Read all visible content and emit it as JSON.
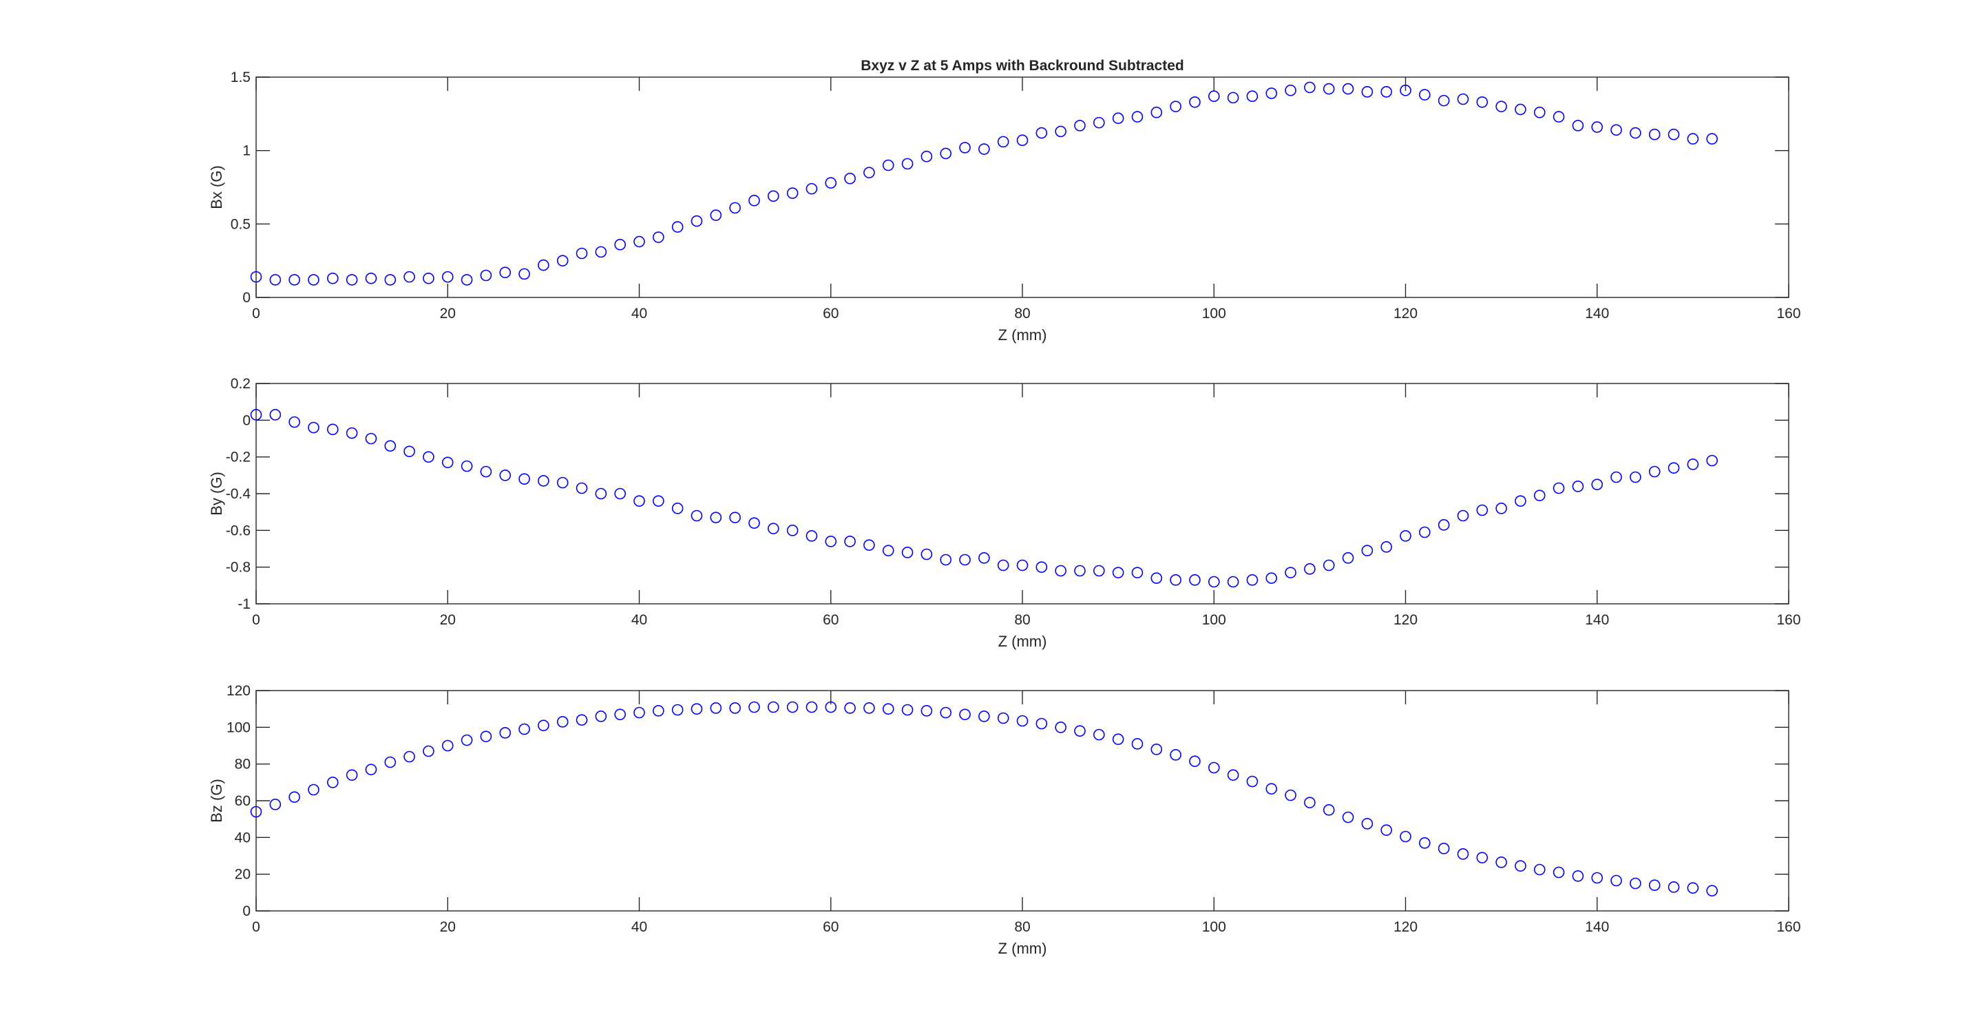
{
  "chart_data": [
    {
      "type": "scatter",
      "title": "Bxyz v Z at 5 Amps with Backround Subtracted",
      "xlabel": "Z (mm)",
      "ylabel": "Bx (G)",
      "xlim": [
        0,
        160
      ],
      "ylim": [
        0,
        1.5
      ],
      "xticks": [
        "0",
        "20",
        "40",
        "60",
        "80",
        "100",
        "120",
        "140",
        "160"
      ],
      "yticks": [
        "0",
        "0.5",
        "1",
        "1.5"
      ],
      "grid": false,
      "marker": "circle",
      "marker_color": "#0000ff",
      "x": [
        0,
        2,
        4,
        6,
        8,
        10,
        12,
        14,
        16,
        18,
        20,
        22,
        24,
        26,
        28,
        30,
        32,
        34,
        36,
        38,
        40,
        42,
        44,
        46,
        48,
        50,
        52,
        54,
        56,
        58,
        60,
        62,
        64,
        66,
        68,
        70,
        72,
        74,
        76,
        78,
        80,
        82,
        84,
        86,
        88,
        90,
        92,
        94,
        96,
        98,
        100,
        102,
        104,
        106,
        108,
        110,
        112,
        114,
        116,
        118,
        120,
        122,
        124,
        126,
        128,
        130,
        132,
        134,
        136,
        138,
        140,
        142,
        144,
        146,
        148,
        150,
        152
      ],
      "y": [
        0.14,
        0.12,
        0.12,
        0.12,
        0.13,
        0.12,
        0.13,
        0.12,
        0.14,
        0.13,
        0.14,
        0.12,
        0.15,
        0.17,
        0.16,
        0.22,
        0.25,
        0.3,
        0.31,
        0.36,
        0.38,
        0.41,
        0.48,
        0.52,
        0.56,
        0.61,
        0.66,
        0.69,
        0.71,
        0.74,
        0.78,
        0.81,
        0.85,
        0.9,
        0.91,
        0.96,
        0.98,
        1.02,
        1.01,
        1.06,
        1.07,
        1.12,
        1.13,
        1.17,
        1.19,
        1.22,
        1.23,
        1.26,
        1.3,
        1.33,
        1.37,
        1.36,
        1.37,
        1.39,
        1.41,
        1.43,
        1.42,
        1.42,
        1.4,
        1.4,
        1.41,
        1.38,
        1.34,
        1.35,
        1.33,
        1.3,
        1.28,
        1.26,
        1.23,
        1.17,
        1.16,
        1.14,
        1.12,
        1.11,
        1.11,
        1.08,
        1.08
      ]
    },
    {
      "type": "scatter",
      "title": "",
      "xlabel": "Z (mm)",
      "ylabel": "By (G)",
      "xlim": [
        0,
        160
      ],
      "ylim": [
        -1,
        0.2
      ],
      "xticks": [
        "0",
        "20",
        "40",
        "60",
        "80",
        "100",
        "120",
        "140",
        "160"
      ],
      "yticks": [
        "-1",
        "-0.8",
        "-0.6",
        "-0.4",
        "-0.2",
        "0",
        "0.2"
      ],
      "grid": false,
      "marker": "circle",
      "marker_color": "#0000ff",
      "x": [
        0,
        2,
        4,
        6,
        8,
        10,
        12,
        14,
        16,
        18,
        20,
        22,
        24,
        26,
        28,
        30,
        32,
        34,
        36,
        38,
        40,
        42,
        44,
        46,
        48,
        50,
        52,
        54,
        56,
        58,
        60,
        62,
        64,
        66,
        68,
        70,
        72,
        74,
        76,
        78,
        80,
        82,
        84,
        86,
        88,
        90,
        92,
        94,
        96,
        98,
        100,
        102,
        104,
        106,
        108,
        110,
        112,
        114,
        116,
        118,
        120,
        122,
        124,
        126,
        128,
        130,
        132,
        134,
        136,
        138,
        140,
        142,
        144,
        146,
        148,
        150,
        152
      ],
      "y": [
        0.03,
        0.03,
        -0.01,
        -0.04,
        -0.05,
        -0.07,
        -0.1,
        -0.14,
        -0.17,
        -0.2,
        -0.23,
        -0.25,
        -0.28,
        -0.3,
        -0.32,
        -0.33,
        -0.34,
        -0.37,
        -0.4,
        -0.4,
        -0.44,
        -0.44,
        -0.48,
        -0.52,
        -0.53,
        -0.53,
        -0.56,
        -0.59,
        -0.6,
        -0.63,
        -0.66,
        -0.66,
        -0.68,
        -0.71,
        -0.72,
        -0.73,
        -0.76,
        -0.76,
        -0.75,
        -0.79,
        -0.79,
        -0.8,
        -0.82,
        -0.82,
        -0.82,
        -0.83,
        -0.83,
        -0.86,
        -0.87,
        -0.87,
        -0.88,
        -0.88,
        -0.87,
        -0.86,
        -0.83,
        -0.81,
        -0.79,
        -0.75,
        -0.71,
        -0.69,
        -0.63,
        -0.61,
        -0.57,
        -0.52,
        -0.49,
        -0.48,
        -0.44,
        -0.41,
        -0.37,
        -0.36,
        -0.35,
        -0.31,
        -0.31,
        -0.28,
        -0.26,
        -0.24,
        -0.22
      ]
    },
    {
      "type": "scatter",
      "title": "",
      "xlabel": "Z (mm)",
      "ylabel": "Bz (G)",
      "xlim": [
        0,
        160
      ],
      "ylim": [
        0,
        120
      ],
      "xticks": [
        "0",
        "20",
        "40",
        "60",
        "80",
        "100",
        "120",
        "140",
        "160"
      ],
      "yticks": [
        "0",
        "20",
        "40",
        "60",
        "80",
        "100",
        "120"
      ],
      "grid": false,
      "marker": "circle",
      "marker_color": "#0000ff",
      "x": [
        0,
        2,
        4,
        6,
        8,
        10,
        12,
        14,
        16,
        18,
        20,
        22,
        24,
        26,
        28,
        30,
        32,
        34,
        36,
        38,
        40,
        42,
        44,
        46,
        48,
        50,
        52,
        54,
        56,
        58,
        60,
        62,
        64,
        66,
        68,
        70,
        72,
        74,
        76,
        78,
        80,
        82,
        84,
        86,
        88,
        90,
        92,
        94,
        96,
        98,
        100,
        102,
        104,
        106,
        108,
        110,
        112,
        114,
        116,
        118,
        120,
        122,
        124,
        126,
        128,
        130,
        132,
        134,
        136,
        138,
        140,
        142,
        144,
        146,
        148,
        150,
        152
      ],
      "y": [
        54,
        58,
        62,
        66,
        70,
        74,
        77,
        81,
        84,
        87,
        90,
        93,
        95,
        97,
        99,
        101,
        103,
        104,
        106,
        107,
        108,
        109,
        109.5,
        110,
        110.5,
        110.5,
        111,
        111,
        111,
        111,
        111,
        110.5,
        110.5,
        110,
        109.5,
        109,
        108,
        107,
        106,
        105,
        103.5,
        102,
        100,
        98,
        96,
        93.5,
        91,
        88,
        85,
        81.5,
        78,
        74,
        70.5,
        66.5,
        63,
        59,
        55,
        51,
        47.5,
        44,
        40.5,
        37,
        34,
        31,
        29,
        26.5,
        24.5,
        22.5,
        21,
        19,
        18,
        16.5,
        15,
        14,
        13,
        12.5,
        11
      ]
    }
  ]
}
